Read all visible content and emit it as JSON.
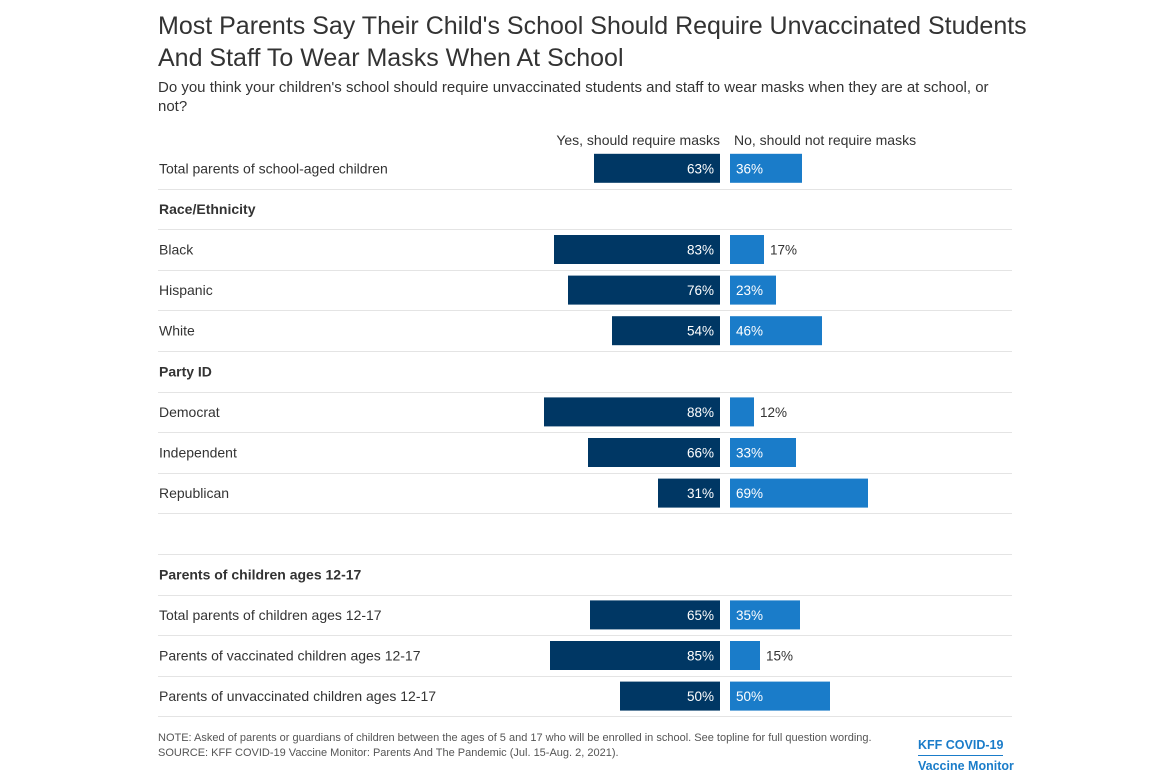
{
  "title": "Most Parents Say Their Child's School Should Require Unvaccinated Students And Staff To Wear Masks When At School",
  "subtitle": "Do you think your children's school should require unvaccinated students and staff to wear masks when they are at school, or not?",
  "colors": {
    "yes": "#003764",
    "no": "#1a7cc9",
    "divider": "#e4e4e4"
  },
  "chart_data": {
    "type": "bar",
    "orientation": "horizontal-diverging",
    "series": [
      {
        "name": "Yes, should require masks"
      },
      {
        "name": "No, should not require masks"
      }
    ],
    "rows": [
      {
        "kind": "data",
        "label": "Total parents of school-aged children",
        "yes": 63,
        "no": 36,
        "yes_label": "63%",
        "no_label": "36%"
      },
      {
        "kind": "group",
        "label": "Race/Ethnicity"
      },
      {
        "kind": "data",
        "label": "Black",
        "yes": 83,
        "no": 17,
        "yes_label": "83%",
        "no_label": "17%"
      },
      {
        "kind": "data",
        "label": "Hispanic",
        "yes": 76,
        "no": 23,
        "yes_label": "76%",
        "no_label": "23%"
      },
      {
        "kind": "data",
        "label": "White",
        "yes": 54,
        "no": 46,
        "yes_label": "54%",
        "no_label": "46%"
      },
      {
        "kind": "group",
        "label": "Party ID"
      },
      {
        "kind": "data",
        "label": "Democrat",
        "yes": 88,
        "no": 12,
        "yes_label": "88%",
        "no_label": "12%"
      },
      {
        "kind": "data",
        "label": "Independent",
        "yes": 66,
        "no": 33,
        "yes_label": "66%",
        "no_label": "33%"
      },
      {
        "kind": "data",
        "label": "Republican",
        "yes": 31,
        "no": 69,
        "yes_label": "31%",
        "no_label": "69%"
      },
      {
        "kind": "blank",
        "label": ""
      },
      {
        "kind": "group",
        "label": "Parents of children ages 12-17"
      },
      {
        "kind": "data",
        "label": "Total parents of children ages 12-17",
        "yes": 65,
        "no": 35,
        "yes_label": "65%",
        "no_label": "35%"
      },
      {
        "kind": "data",
        "label": "Parents of vaccinated children ages 12-17",
        "yes": 85,
        "no": 15,
        "yes_label": "85%",
        "no_label": "15%"
      },
      {
        "kind": "data",
        "label": "Parents of unvaccinated children ages 12-17",
        "yes": 50,
        "no": 50,
        "yes_label": "50%",
        "no_label": "50%"
      }
    ]
  },
  "note": "NOTE: Asked of parents or guardians of children between the ages of 5 and 17 who will be enrolled in school. See topline for full question wording.",
  "source": "SOURCE: KFF COVID-19 Vaccine Monitor: Parents And The Pandemic (Jul. 15-Aug. 2, 2021).",
  "brand": {
    "line1": "KFF COVID-19",
    "line2": "Vaccine Monitor"
  }
}
